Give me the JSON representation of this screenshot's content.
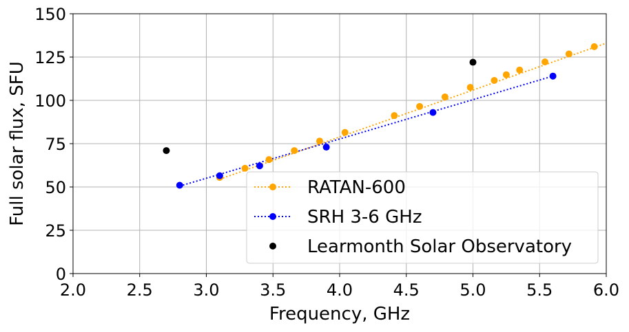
{
  "chart_data": {
    "type": "line",
    "title": "",
    "xlabel": "Frequency, GHz",
    "ylabel": "Full solar flux, SFU",
    "xlim": [
      2.0,
      6.0
    ],
    "ylim": [
      0,
      150
    ],
    "xticks": [
      "2.0",
      "2.5",
      "3.0",
      "3.5",
      "4.0",
      "4.5",
      "5.0",
      "5.5",
      "6.0"
    ],
    "yticks": [
      "0",
      "25",
      "50",
      "75",
      "100",
      "125",
      "150"
    ],
    "grid": true,
    "legend_position": "lower-right",
    "series": [
      {
        "name": "RATAN-600",
        "color": "#ffa500",
        "line_style": "dotted",
        "marker": "circle",
        "x": [
          3.1,
          3.29,
          3.47,
          3.66,
          3.85,
          4.04,
          4.41,
          4.6,
          4.79,
          4.98,
          5.16,
          5.25,
          5.35,
          5.54,
          5.72,
          5.91
        ],
        "y": [
          55.5,
          60.8,
          65.8,
          71.0,
          76.5,
          81.5,
          91.2,
          96.5,
          102.0,
          107.5,
          111.5,
          114.8,
          117.5,
          122.2,
          126.8,
          131.0
        ],
        "fit_line": {
          "x": [
            3.1,
            6.0
          ],
          "y": [
            54.5,
            133.0
          ]
        }
      },
      {
        "name": "SRH 3-6 GHz",
        "color": "#0000ff",
        "line_style": "dotted",
        "marker": "circle",
        "x": [
          2.8,
          3.1,
          3.4,
          3.9,
          4.7,
          5.6
        ],
        "y": [
          51.0,
          56.5,
          62.2,
          73.0,
          93.0,
          114.0
        ],
        "fit_line": {
          "x": [
            2.8,
            5.6
          ],
          "y": [
            50.5,
            114.0
          ]
        }
      },
      {
        "name": "Learmonth Solar Observatory",
        "color": "#000000",
        "line_style": "none",
        "marker": "circle",
        "x": [
          2.7,
          5.0
        ],
        "y": [
          71.0,
          122.0
        ]
      }
    ]
  }
}
